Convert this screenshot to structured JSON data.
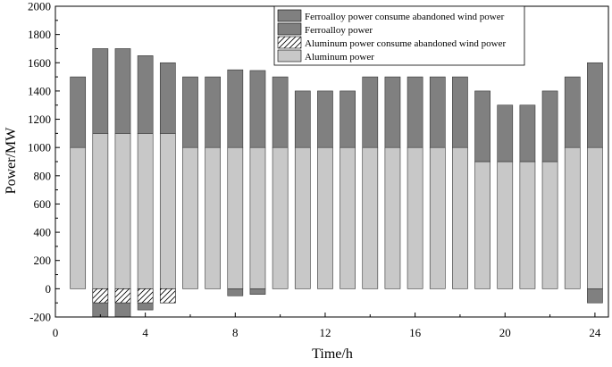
{
  "chart_data": {
    "type": "bar",
    "stacked": true,
    "title": "",
    "xlabel": "Time/h",
    "ylabel": "Power/MW",
    "xlim": [
      0,
      24.6
    ],
    "ylim": [
      -200,
      2000
    ],
    "xticks": [
      0,
      4,
      8,
      12,
      16,
      20,
      24
    ],
    "yticks": [
      -200,
      0,
      200,
      400,
      600,
      800,
      1000,
      1200,
      1400,
      1600,
      1800,
      2000
    ],
    "grid": false,
    "legend_position": "top-right",
    "x": [
      1,
      2,
      3,
      4,
      5,
      6,
      7,
      8,
      9,
      10,
      11,
      12,
      13,
      14,
      15,
      16,
      17,
      18,
      19,
      20,
      21,
      22,
      23,
      24
    ],
    "series": [
      {
        "name": "Ferroalloy power consume abandoned wind power",
        "key": "ferro_wind",
        "color": "#808080",
        "pattern": "solid",
        "values": [
          0,
          -100,
          -100,
          -50,
          0,
          0,
          0,
          -50,
          -40,
          0,
          0,
          0,
          0,
          0,
          0,
          0,
          0,
          0,
          0,
          0,
          0,
          0,
          0,
          -100
        ]
      },
      {
        "name": "Ferroalloy power",
        "key": "ferro",
        "color": "#808080",
        "pattern": "solid",
        "values": [
          500,
          600,
          600,
          550,
          500,
          500,
          500,
          550,
          545,
          500,
          400,
          400,
          400,
          500,
          500,
          500,
          500,
          500,
          500,
          400,
          400,
          500,
          500,
          600
        ]
      },
      {
        "name": "Aluminum power consume abandoned wind power",
        "key": "alu_wind",
        "color": "#ffffff",
        "pattern": "hatch",
        "values": [
          0,
          -100,
          -100,
          -100,
          -100,
          0,
          0,
          0,
          0,
          0,
          0,
          0,
          0,
          0,
          0,
          0,
          0,
          0,
          0,
          0,
          0,
          0,
          0,
          0
        ]
      },
      {
        "name": "Aluminum power",
        "key": "alu",
        "color": "#c8c8c8",
        "pattern": "solid",
        "values": [
          1000,
          1100,
          1100,
          1100,
          1100,
          1000,
          1000,
          1000,
          1000,
          1000,
          1000,
          1000,
          1000,
          1000,
          1000,
          1000,
          1000,
          1000,
          900,
          900,
          900,
          900,
          1000,
          1000
        ]
      }
    ]
  }
}
